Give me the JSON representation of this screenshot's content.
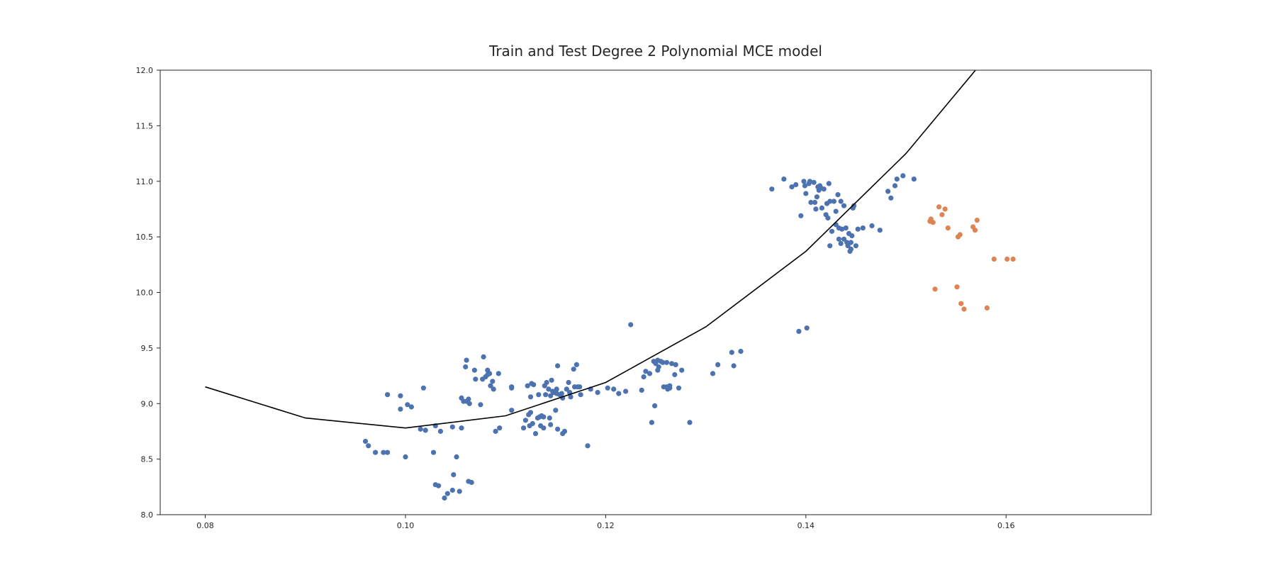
{
  "chart_data": {
    "type": "scatter",
    "title": "Train and Test Degree 2 Polynomial MCE model",
    "xlabel": "",
    "ylabel": "",
    "xlim": [
      0.0755,
      0.1745
    ],
    "ylim": [
      8.0,
      12.0
    ],
    "xticks": [
      0.08,
      0.1,
      0.12,
      0.14,
      0.16
    ],
    "xtick_labels": [
      "0.08",
      "0.10",
      "0.12",
      "0.14",
      "0.16"
    ],
    "yticks": [
      8.0,
      8.5,
      9.0,
      9.5,
      10.0,
      10.5,
      11.0,
      11.5,
      12.0
    ],
    "ytick_labels": [
      "8.0",
      "8.5",
      "9.0",
      "9.5",
      "10.0",
      "10.5",
      "11.0",
      "11.5",
      "12.0"
    ],
    "grid": false,
    "colors": {
      "train": "#4c72b0",
      "test": "#dd8452",
      "fit": "#000000",
      "axes": "#262626"
    },
    "series": [
      {
        "kind": "scatter",
        "color": "#4c72b0",
        "points": [
          [
            0.096,
            8.66
          ],
          [
            0.0963,
            8.62
          ],
          [
            0.097,
            8.56
          ],
          [
            0.0978,
            8.56
          ],
          [
            0.0982,
            8.56
          ],
          [
            0.0982,
            9.08
          ],
          [
            0.0995,
            9.07
          ],
          [
            0.0995,
            8.95
          ],
          [
            0.1,
            8.52
          ],
          [
            0.1002,
            8.99
          ],
          [
            0.1006,
            8.97
          ],
          [
            0.1015,
            8.77
          ],
          [
            0.1018,
            9.14
          ],
          [
            0.102,
            8.76
          ],
          [
            0.1028,
            8.56
          ],
          [
            0.103,
            8.8
          ],
          [
            0.1035,
            8.75
          ],
          [
            0.103,
            8.27
          ],
          [
            0.1033,
            8.26
          ],
          [
            0.1039,
            8.15
          ],
          [
            0.1042,
            8.19
          ],
          [
            0.1047,
            8.22
          ],
          [
            0.1048,
            8.36
          ],
          [
            0.1047,
            8.79
          ],
          [
            0.1051,
            8.52
          ],
          [
            0.1054,
            8.21
          ],
          [
            0.1056,
            9.05
          ],
          [
            0.1058,
            9.02
          ],
          [
            0.1056,
            8.78
          ],
          [
            0.106,
            9.33
          ],
          [
            0.1061,
            9.39
          ],
          [
            0.1061,
            9.02
          ],
          [
            0.1063,
            9.04
          ],
          [
            0.1064,
            9.0
          ],
          [
            0.1063,
            8.3
          ],
          [
            0.1066,
            8.29
          ],
          [
            0.1069,
            9.3
          ],
          [
            0.107,
            9.22
          ],
          [
            0.1075,
            8.99
          ],
          [
            0.1077,
            9.22
          ],
          [
            0.1078,
            9.42
          ],
          [
            0.108,
            9.24
          ],
          [
            0.1082,
            9.3
          ],
          [
            0.1082,
            9.26
          ],
          [
            0.1084,
            9.27
          ],
          [
            0.1085,
            9.16
          ],
          [
            0.1087,
            9.2
          ],
          [
            0.1088,
            9.13
          ],
          [
            0.109,
            8.75
          ],
          [
            0.1093,
            9.27
          ],
          [
            0.1094,
            8.78
          ],
          [
            0.1106,
            9.15
          ],
          [
            0.1106,
            9.14
          ],
          [
            0.1106,
            8.94
          ],
          [
            0.1118,
            8.78
          ],
          [
            0.112,
            8.85
          ],
          [
            0.1122,
            9.16
          ],
          [
            0.1123,
            8.9
          ],
          [
            0.1125,
            8.92
          ],
          [
            0.1124,
            8.8
          ],
          [
            0.1125,
            9.06
          ],
          [
            0.1126,
            9.18
          ],
          [
            0.1127,
            8.82
          ],
          [
            0.1128,
            9.17
          ],
          [
            0.113,
            8.73
          ],
          [
            0.1132,
            8.87
          ],
          [
            0.1133,
            9.08
          ],
          [
            0.1134,
            8.88
          ],
          [
            0.1135,
            8.8
          ],
          [
            0.1136,
            8.89
          ],
          [
            0.1138,
            8.78
          ],
          [
            0.1138,
            8.88
          ],
          [
            0.1139,
            9.16
          ],
          [
            0.114,
            9.08
          ],
          [
            0.1141,
            9.19
          ],
          [
            0.1143,
            9.13
          ],
          [
            0.1145,
            9.07
          ],
          [
            0.1144,
            8.87
          ],
          [
            0.1145,
            8.81
          ],
          [
            0.1146,
            9.21
          ],
          [
            0.1147,
            9.11
          ],
          [
            0.1148,
            9.1
          ],
          [
            0.115,
            8.94
          ],
          [
            0.1151,
            9.13
          ],
          [
            0.1151,
            9.09
          ],
          [
            0.1152,
            9.34
          ],
          [
            0.1152,
            8.77
          ],
          [
            0.1154,
            9.08
          ],
          [
            0.1156,
            9.09
          ],
          [
            0.1157,
            9.05
          ],
          [
            0.1157,
            8.73
          ],
          [
            0.1159,
            8.75
          ],
          [
            0.1161,
            9.13
          ],
          [
            0.1163,
            9.19
          ],
          [
            0.1164,
            9.1
          ],
          [
            0.1165,
            9.06
          ],
          [
            0.1168,
            9.31
          ],
          [
            0.1169,
            9.15
          ],
          [
            0.1171,
            9.35
          ],
          [
            0.1172,
            9.15
          ],
          [
            0.1174,
            9.15
          ],
          [
            0.1175,
            9.08
          ],
          [
            0.1182,
            8.62
          ],
          [
            0.1185,
            9.13
          ],
          [
            0.1192,
            9.1
          ],
          [
            0.1202,
            9.14
          ],
          [
            0.1208,
            9.13
          ],
          [
            0.1213,
            9.09
          ],
          [
            0.122,
            9.11
          ],
          [
            0.1225,
            9.71
          ],
          [
            0.1236,
            9.12
          ],
          [
            0.1238,
            9.24
          ],
          [
            0.124,
            9.29
          ],
          [
            0.1244,
            9.27
          ],
          [
            0.1246,
            8.83
          ],
          [
            0.1248,
            9.38
          ],
          [
            0.1249,
            8.98
          ],
          [
            0.125,
            9.36
          ],
          [
            0.1252,
            9.39
          ],
          [
            0.1252,
            9.3
          ],
          [
            0.1253,
            9.33
          ],
          [
            0.1255,
            9.38
          ],
          [
            0.1257,
            9.37
          ],
          [
            0.1258,
            9.15
          ],
          [
            0.1261,
            9.37
          ],
          [
            0.1261,
            9.15
          ],
          [
            0.1262,
            9.13
          ],
          [
            0.1264,
            9.16
          ],
          [
            0.1264,
            9.14
          ],
          [
            0.1266,
            9.36
          ],
          [
            0.1269,
            9.26
          ],
          [
            0.127,
            9.35
          ],
          [
            0.1273,
            9.14
          ],
          [
            0.1276,
            9.3
          ],
          [
            0.1284,
            8.83
          ],
          [
            0.1307,
            9.27
          ],
          [
            0.1312,
            9.35
          ],
          [
            0.1326,
            9.46
          ],
          [
            0.1328,
            9.34
          ],
          [
            0.1335,
            9.47
          ],
          [
            0.1366,
            10.93
          ],
          [
            0.1378,
            11.02
          ],
          [
            0.1386,
            10.95
          ],
          [
            0.139,
            10.97
          ],
          [
            0.1393,
            9.65
          ],
          [
            0.1395,
            10.69
          ],
          [
            0.1398,
            11.0
          ],
          [
            0.1399,
            10.96
          ],
          [
            0.14,
            10.89
          ],
          [
            0.1401,
            9.68
          ],
          [
            0.1403,
            10.98
          ],
          [
            0.1404,
            11.0
          ],
          [
            0.1405,
            10.81
          ],
          [
            0.1408,
            10.99
          ],
          [
            0.1409,
            10.81
          ],
          [
            0.141,
            10.75
          ],
          [
            0.1411,
            10.86
          ],
          [
            0.1412,
            10.95
          ],
          [
            0.1413,
            10.92
          ],
          [
            0.1414,
            10.96
          ],
          [
            0.1415,
            10.94
          ],
          [
            0.1416,
            10.76
          ],
          [
            0.1418,
            10.93
          ],
          [
            0.142,
            10.7
          ],
          [
            0.1421,
            10.8
          ],
          [
            0.1422,
            10.67
          ],
          [
            0.1423,
            10.98
          ],
          [
            0.1424,
            10.82
          ],
          [
            0.1424,
            10.42
          ],
          [
            0.1426,
            10.55
          ],
          [
            0.1428,
            10.82
          ],
          [
            0.143,
            10.73
          ],
          [
            0.143,
            10.61
          ],
          [
            0.1432,
            10.88
          ],
          [
            0.1433,
            10.58
          ],
          [
            0.1433,
            10.48
          ],
          [
            0.1435,
            10.44
          ],
          [
            0.1435,
            10.82
          ],
          [
            0.1436,
            10.57
          ],
          [
            0.1438,
            10.78
          ],
          [
            0.1438,
            10.48
          ],
          [
            0.144,
            10.58
          ],
          [
            0.1441,
            10.45
          ],
          [
            0.1442,
            10.42
          ],
          [
            0.1443,
            10.53
          ],
          [
            0.1444,
            10.37
          ],
          [
            0.1445,
            10.39
          ],
          [
            0.1445,
            10.45
          ],
          [
            0.1446,
            10.51
          ],
          [
            0.1447,
            10.76
          ],
          [
            0.1448,
            10.78
          ],
          [
            0.145,
            10.42
          ],
          [
            0.1452,
            10.57
          ],
          [
            0.1457,
            10.58
          ],
          [
            0.1466,
            10.6
          ],
          [
            0.1474,
            10.56
          ],
          [
            0.1482,
            10.91
          ],
          [
            0.1485,
            10.85
          ],
          [
            0.1489,
            10.96
          ],
          [
            0.1491,
            11.02
          ],
          [
            0.1497,
            11.05
          ],
          [
            0.1508,
            11.02
          ]
        ]
      },
      {
        "kind": "scatter",
        "color": "#dd8452",
        "points": [
          [
            0.1524,
            10.64
          ],
          [
            0.1525,
            10.66
          ],
          [
            0.1527,
            10.63
          ],
          [
            0.1529,
            10.03
          ],
          [
            0.1533,
            10.77
          ],
          [
            0.1536,
            10.7
          ],
          [
            0.1539,
            10.75
          ],
          [
            0.1542,
            10.58
          ],
          [
            0.1551,
            10.05
          ],
          [
            0.1552,
            10.5
          ],
          [
            0.1554,
            10.52
          ],
          [
            0.1555,
            9.9
          ],
          [
            0.1558,
            9.85
          ],
          [
            0.1567,
            10.59
          ],
          [
            0.1569,
            10.56
          ],
          [
            0.1571,
            10.65
          ],
          [
            0.1581,
            9.86
          ],
          [
            0.1588,
            10.3
          ],
          [
            0.1601,
            10.3
          ],
          [
            0.1607,
            10.3
          ]
        ]
      },
      {
        "kind": "line",
        "color": "#000000",
        "points": [
          [
            0.08,
            9.15
          ],
          [
            0.09,
            8.87
          ],
          [
            0.1,
            8.78
          ],
          [
            0.11,
            8.89
          ],
          [
            0.12,
            9.19
          ],
          [
            0.13,
            9.69
          ],
          [
            0.14,
            10.37
          ],
          [
            0.15,
            11.25
          ],
          [
            0.16,
            12.33
          ]
        ]
      }
    ]
  }
}
